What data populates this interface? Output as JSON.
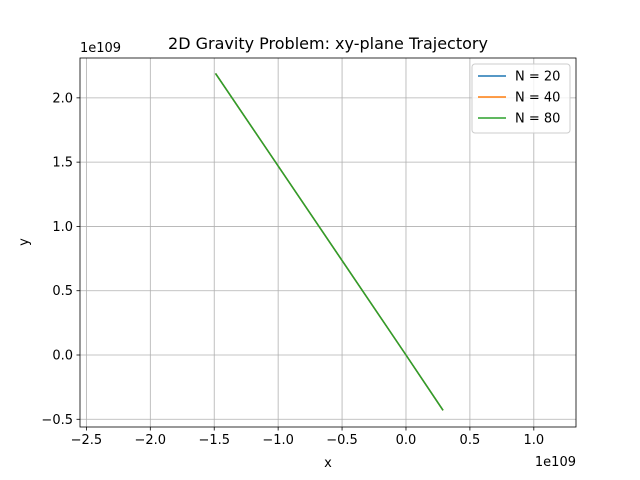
{
  "chart_data": {
    "type": "line",
    "title": "2D Gravity Problem: xy-plane Trajectory",
    "xlabel": "x",
    "ylabel": "y",
    "x_offset_text": "1e109",
    "y_offset_text": "1e109",
    "xlim": [
      -2.55,
      1.33
    ],
    "ylim": [
      -0.56,
      2.31
    ],
    "x_ticks": [
      -2.5,
      -2.0,
      -1.5,
      -1.0,
      -0.5,
      0.0,
      0.5,
      1.0
    ],
    "x_tick_labels": [
      "−2.5",
      "−2.0",
      "−1.5",
      "−1.0",
      "−0.5",
      "0.0",
      "0.5",
      "1.0"
    ],
    "y_ticks": [
      -0.5,
      0.0,
      0.5,
      1.0,
      1.5,
      2.0
    ],
    "y_tick_labels": [
      "−0.5",
      "0.0",
      "0.5",
      "1.0",
      "1.5",
      "2.0"
    ],
    "grid": true,
    "legend_position": "top-right",
    "series": [
      {
        "name": "N = 20",
        "color": "#1f77b4",
        "x": [
          -1.49,
          0.0,
          0.29
        ],
        "y": [
          2.19,
          0.0,
          -0.43
        ]
      },
      {
        "name": "N = 40",
        "color": "#ff7f0e",
        "x": [
          -1.49,
          0.0,
          0.29
        ],
        "y": [
          2.19,
          0.0,
          -0.43
        ]
      },
      {
        "name": "N = 80",
        "color": "#2ca02c",
        "x": [
          -1.49,
          0.0,
          0.29
        ],
        "y": [
          2.19,
          0.0,
          -0.43
        ]
      }
    ]
  }
}
